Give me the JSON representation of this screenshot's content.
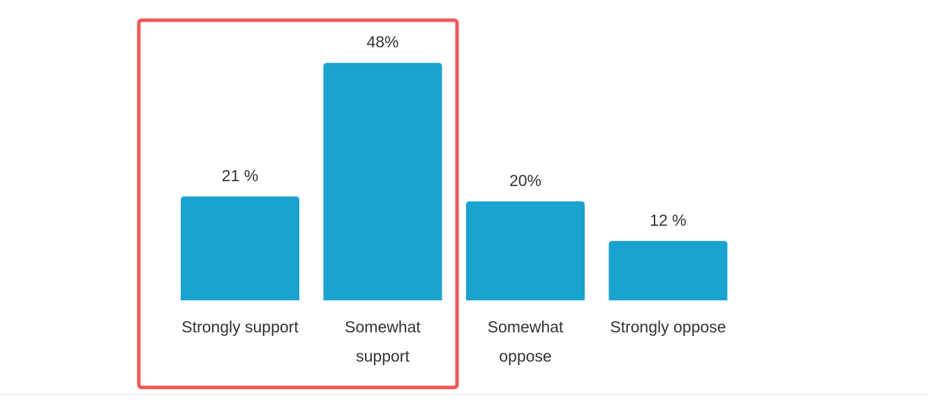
{
  "chart_data": {
    "type": "bar",
    "categories": [
      "Strongly support",
      "Somewhat support",
      "Somewhat oppose",
      "Strongly oppose"
    ],
    "values": [
      21,
      48,
      20,
      12
    ],
    "value_labels": [
      "21 %",
      "48%",
      "20%",
      "12 %"
    ],
    "color": "#1aa3cf"
  }
}
